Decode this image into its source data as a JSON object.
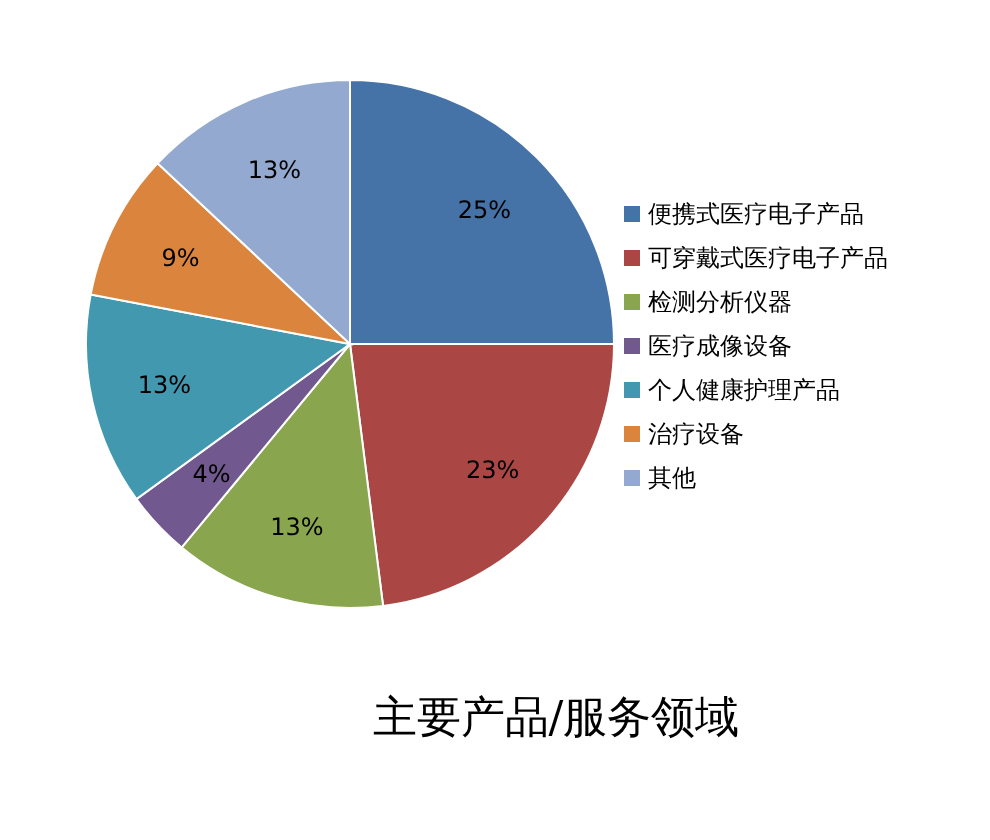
{
  "chart_data": {
    "type": "pie",
    "title": "主要产品/服务领域",
    "categories": [
      "便携式医疗电子产品",
      "可穿戴式医疗电子产品",
      "检测分析仪器",
      "医疗成像设备",
      "个人健康护理产品",
      "治疗设备",
      "其他"
    ],
    "values": [
      25,
      23,
      13,
      4,
      13,
      9,
      13
    ],
    "value_labels": [
      "25%",
      "23%",
      "13%",
      "4%",
      "13%",
      "9%",
      "13%"
    ],
    "colors": [
      "#4572a7",
      "#aa4643",
      "#89a54e",
      "#71588f",
      "#4198af",
      "#db843d",
      "#93a9cf"
    ],
    "legend": "right"
  }
}
